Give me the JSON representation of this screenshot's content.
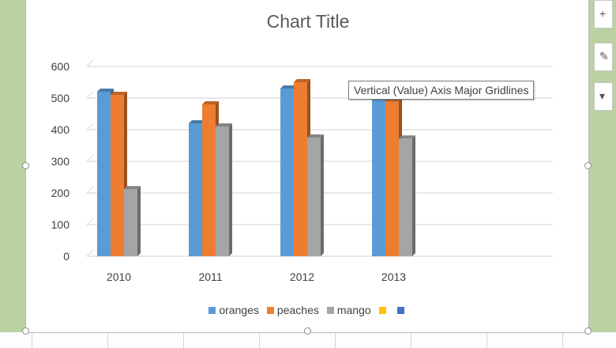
{
  "chart_data": {
    "type": "bar",
    "title": "Chart Title",
    "categories": [
      "2010",
      "2011",
      "2012",
      "2013"
    ],
    "series": [
      {
        "name": "oranges",
        "values": [
          520,
          420,
          530,
          495
        ],
        "color": "#5b9bd5"
      },
      {
        "name": "peaches",
        "values": [
          510,
          480,
          550,
          490
        ],
        "color": "#ed7d31"
      },
      {
        "name": "mango",
        "values": [
          212,
          410,
          375,
          372
        ],
        "color": "#a5a5a5"
      }
    ],
    "extra_legend_entries": [
      {
        "name": "",
        "color": "#ffc000"
      },
      {
        "name": "",
        "color": "#4472c4"
      }
    ],
    "y_ticks": [
      "0",
      "100",
      "200",
      "300",
      "400",
      "500",
      "600"
    ],
    "ylim": [
      0,
      600
    ],
    "xlabel": "",
    "ylabel": "",
    "grid": true,
    "legend_position": "bottom",
    "bar_style": "3-D clustered column"
  },
  "tooltip": "Vertical (Value) Axis Major Gridlines",
  "side_buttons": [
    {
      "icon": "plus-icon",
      "glyph": "+"
    },
    {
      "icon": "brush-icon",
      "glyph": "✎"
    },
    {
      "icon": "filter-icon",
      "glyph": "▾"
    }
  ]
}
